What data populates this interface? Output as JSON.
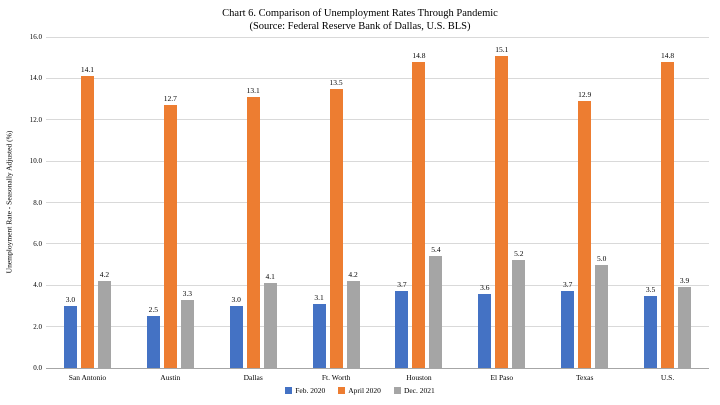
{
  "header": {
    "title": "Chart 6. Comparison of Unemployment Rates Through Pandemic",
    "subtitle": "(Source: Federal Reserve Bank of Dallas, U.S. BLS)"
  },
  "colors": {
    "series_feb_2020": "#4472C4",
    "series_april_2020": "#ED7D31",
    "series_dec_2021": "#A5A5A5",
    "gridline": "#D9D9D9",
    "axis_line": "#A6A6A6",
    "text": "#000000"
  },
  "chart_data": {
    "type": "bar",
    "title": "Chart 6. Comparison of Unemployment Rates Through Pandemic (Source: Federal Reserve Bank of Dallas, U.S. BLS)",
    "xlabel": "",
    "ylabel": "Unemployment Rate - Seasonally Adjusted (%)",
    "ylim": [
      0,
      16
    ],
    "ytick_step": 2,
    "ytick_labels": [
      "0.0",
      "2.0",
      "4.0",
      "6.0",
      "8.0",
      "10.0",
      "12.0",
      "14.0",
      "16.0"
    ],
    "grid": true,
    "legend_position": "bottom",
    "categories": [
      "San Antonio",
      "Austin",
      "Dallas",
      "Ft. Worth",
      "Houston",
      "El Paso",
      "Texas",
      "U.S."
    ],
    "series": [
      {
        "name": "Feb. 2020",
        "color": "#4472C4",
        "values": [
          3.0,
          2.5,
          3.0,
          3.1,
          3.7,
          3.6,
          3.7,
          3.5
        ]
      },
      {
        "name": "April 2020",
        "color": "#ED7D31",
        "values": [
          14.1,
          12.7,
          13.1,
          13.5,
          14.8,
          15.1,
          12.9,
          14.8
        ]
      },
      {
        "name": "Dec. 2021",
        "color": "#A5A5A5",
        "values": [
          4.2,
          3.3,
          4.1,
          4.2,
          5.4,
          5.2,
          5.0,
          3.9
        ]
      }
    ],
    "data_labels_format": "one_decimal"
  }
}
